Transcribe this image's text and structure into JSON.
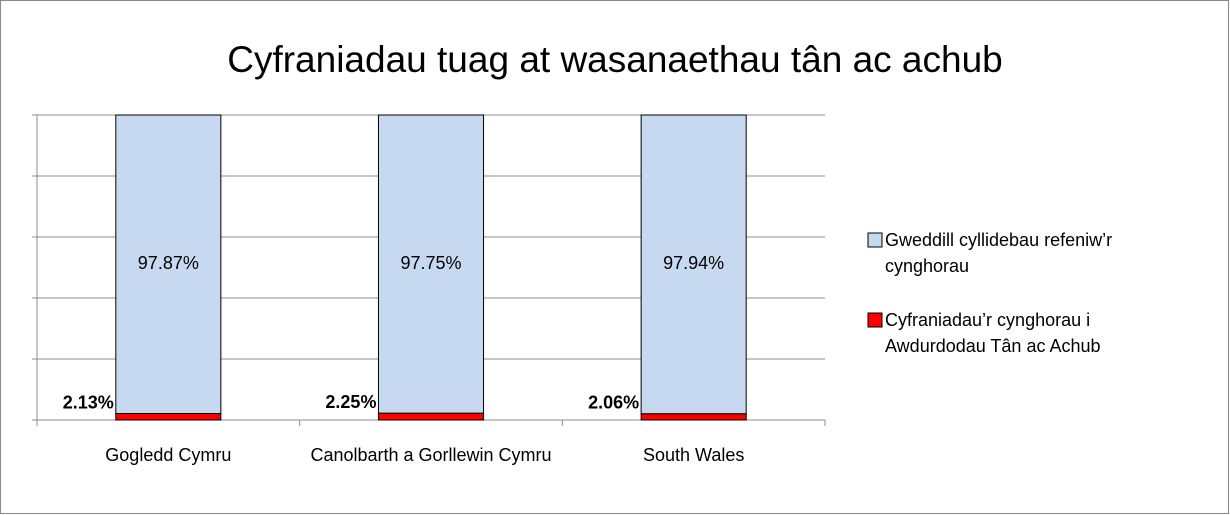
{
  "chart_data": {
    "type": "stacked_bar",
    "title": "Cyfraniadau tuag at wasanaethau tân ac achub",
    "categories": [
      "Gogledd Cymru",
      "Canolbarth a Gorllewin Cymru",
      "South Wales"
    ],
    "series": [
      {
        "name": "Cyfraniadau’r cynghorau i Awdurdodau Tân ac Achub",
        "color": "#ff0000",
        "values": [
          2.13,
          2.25,
          2.06
        ],
        "value_labels": [
          "2.13%",
          "2.25%",
          "2.06%"
        ]
      },
      {
        "name": "Gweddill cyllidebau refeniw’r cynghorau",
        "color": "#c6d9f1",
        "values": [
          97.87,
          97.75,
          97.94
        ],
        "value_labels": [
          "97.87%",
          "97.75%",
          "97.94%"
        ]
      }
    ],
    "ylim": [
      0,
      100
    ],
    "yticks": [
      0,
      20,
      40,
      60,
      80,
      100
    ],
    "grid": true,
    "legend": "right"
  }
}
